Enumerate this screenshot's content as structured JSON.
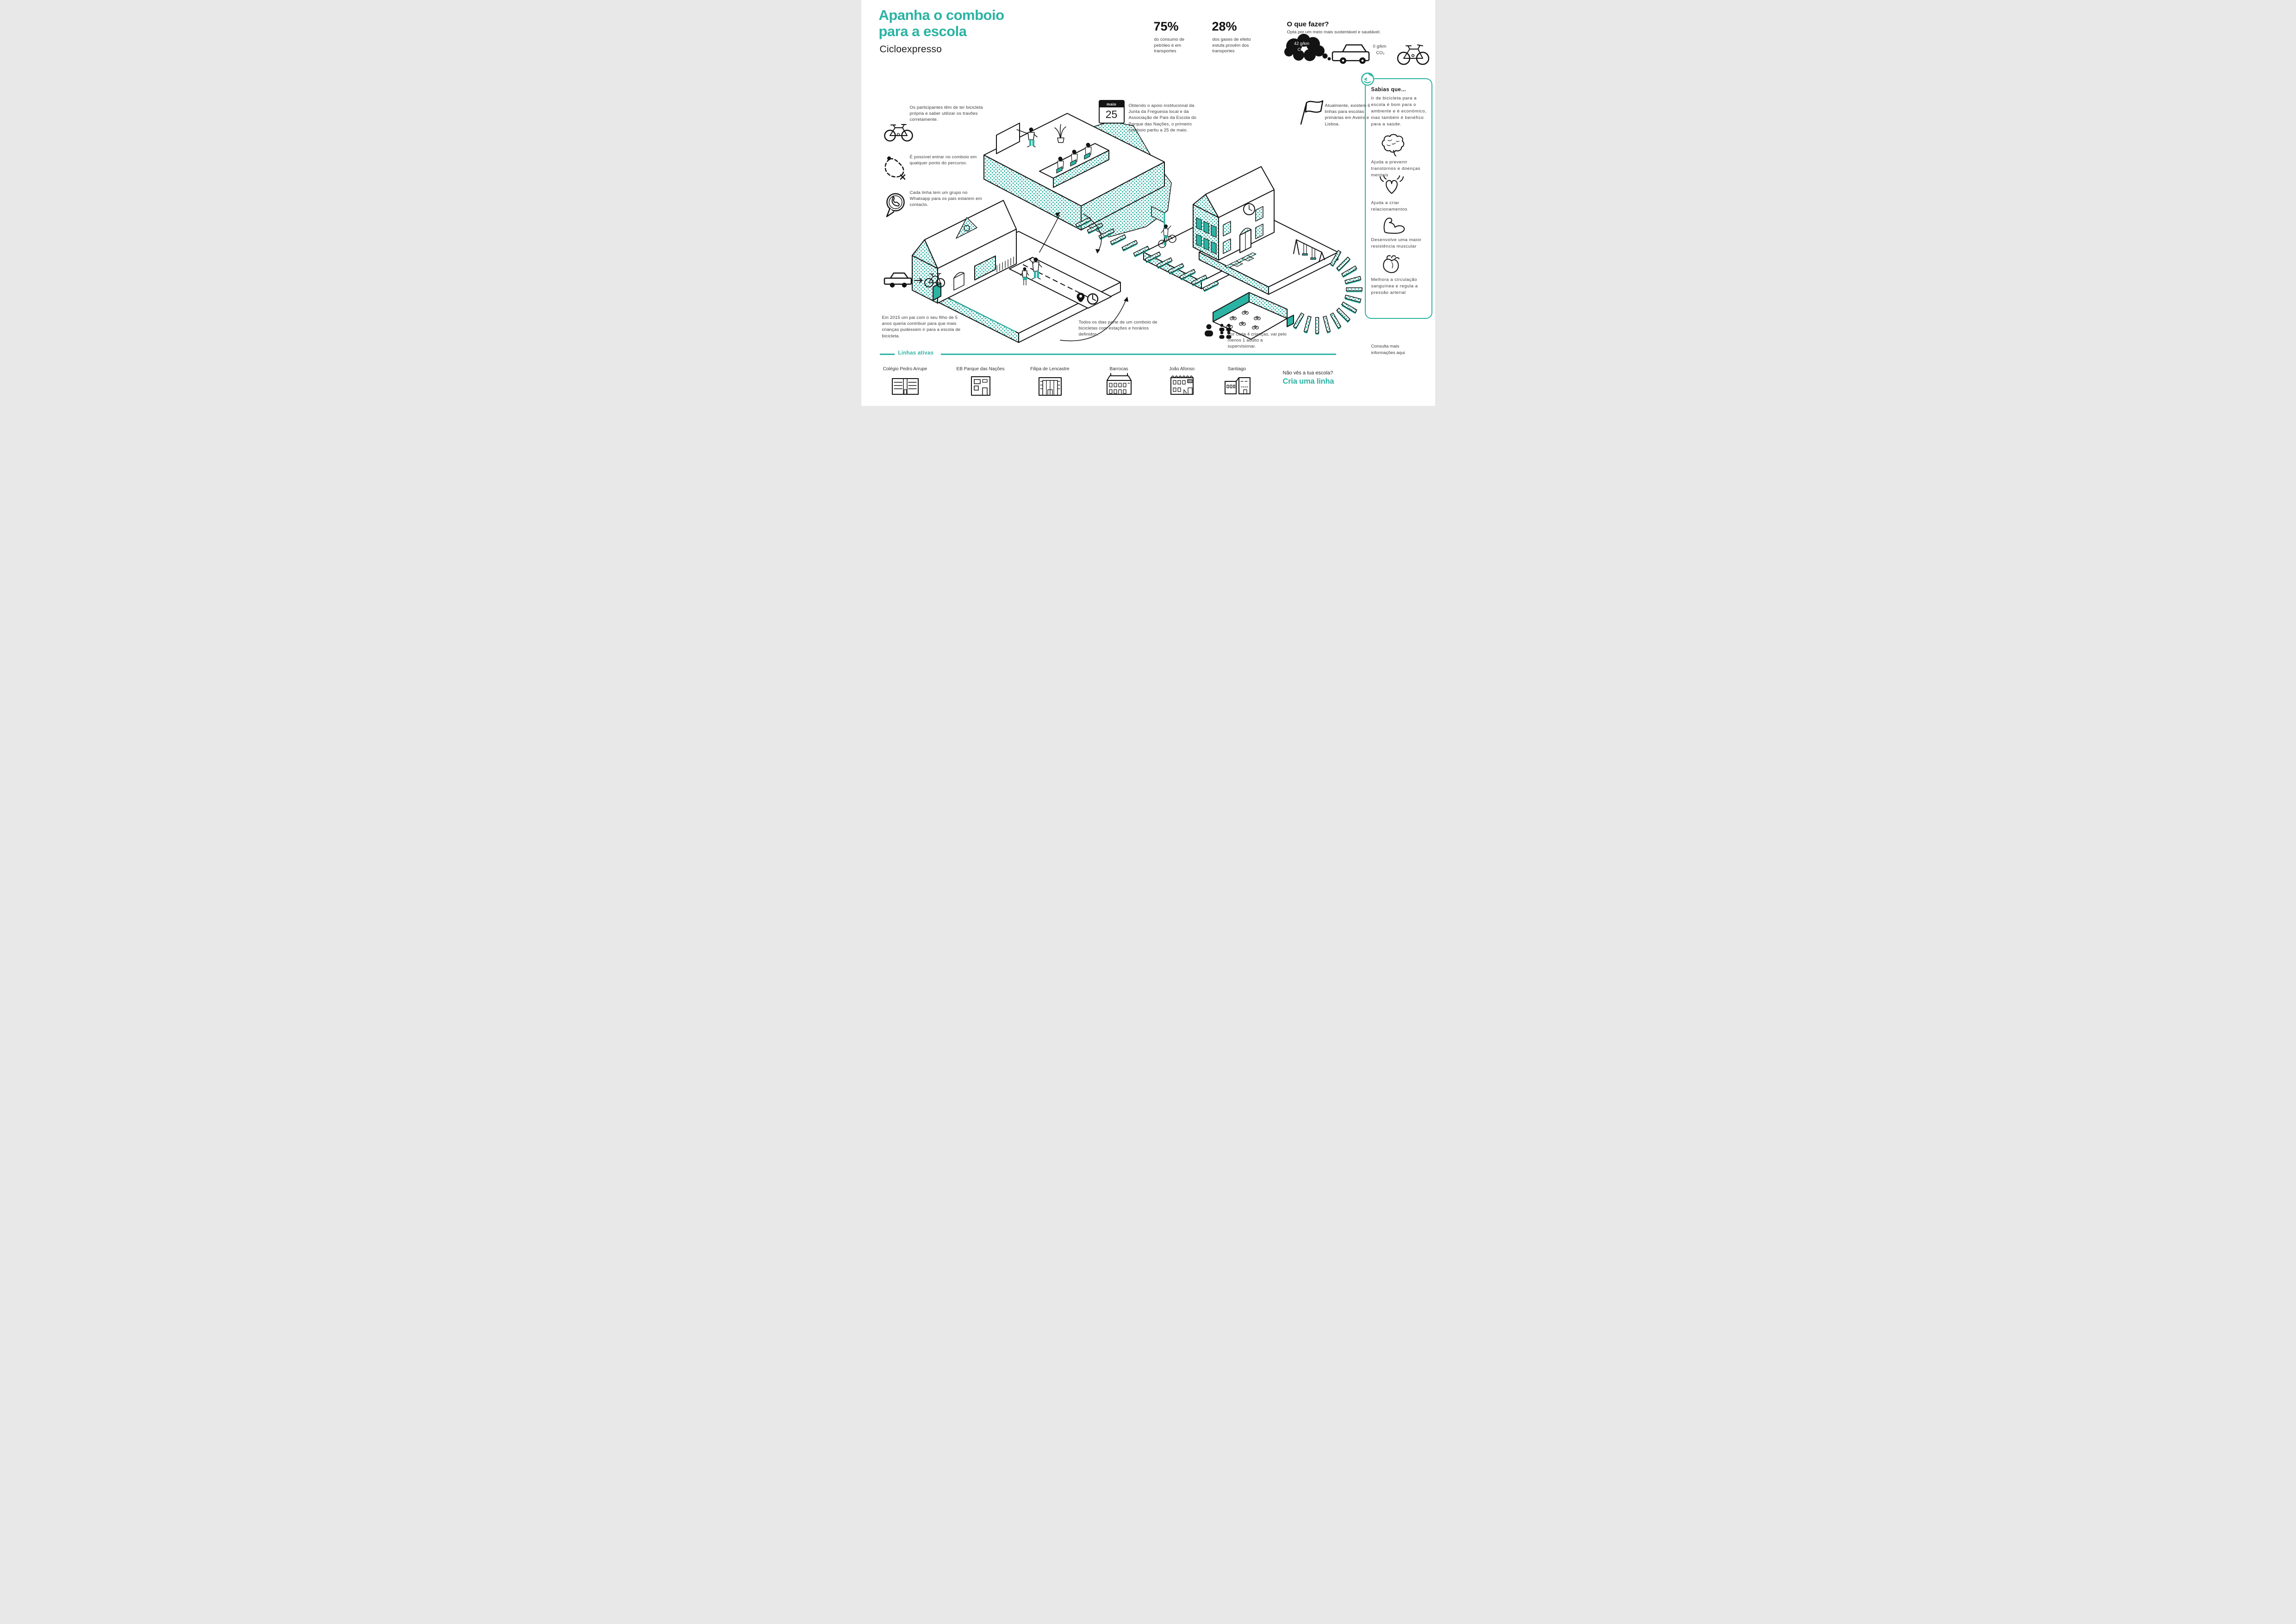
{
  "colors": {
    "accent": "#2bb3a3",
    "ink": "#131313",
    "body_text": "#3c3c3c"
  },
  "header": {
    "title_line1": "Apanha o comboio",
    "title_line2": "para a escola",
    "subtitle": "Cicloexpresso"
  },
  "stats": [
    {
      "value": "75%",
      "caption": "do consumo de petróleo é em transportes"
    },
    {
      "value": "28%",
      "caption": "dos gases de efeito estufa provêm dos transportes"
    }
  ],
  "what_to_do": {
    "title": "O que fazer?",
    "subtitle": "Opta por um meio mais sustentável e saudável.",
    "car_emission_value": "42 g/km",
    "car_emission_unit": "CO₂",
    "bike_emission_value": "0 g/km",
    "bike_emission_unit": "CO₂"
  },
  "guidelines": [
    {
      "icon": "bicycle-icon",
      "text": "Os participantes têm de ter bicicleta própria e saber utilizar os travões corretamente."
    },
    {
      "icon": "route-icon",
      "text": "É possível entrar no comboio em qualquer ponto do percurso."
    },
    {
      "icon": "whatsapp-icon",
      "text": "Cada linha tem um grupo no Whatsapp para os pais estarem em contacto."
    }
  ],
  "calendar_note": {
    "month": "maio",
    "day": "25",
    "text": "Obtendo o apoio institucional da Junta da Freguesia local e da Associação de Pais da Escola do Parque das Nações, o primeiro comboio partiu a 25 de maio."
  },
  "flag_note": {
    "text": "Atualmente, existem 6 linhas para escolas primárias em Aveiro e Lisboa."
  },
  "story_note": {
    "text": "Em 2015 um pai com o seu filho de 5 anos queria contribuir para que mais crianças pudessem ir para a escola de bicicleta."
  },
  "schedule_note": {
    "text": "Todos os dias parte de um comboio de bicicletas com estações e horários definidos."
  },
  "supervision_note": {
    "text": "Por cada 4 crianças, vai pelo menos 1 adulto a supervisionar."
  },
  "sidebar": {
    "title": "Sabias que...",
    "intro": "Ir de bicicleta para a escola é bom para o ambiente e é económico, mas também é benéfico para a saúde.",
    "benefits": [
      {
        "icon": "brain-icon",
        "text": "Ajuda a prevenir transtornos e doenças mentais"
      },
      {
        "icon": "radiating-heart-icon",
        "text": "Ajuda a criar relacionamentos"
      },
      {
        "icon": "muscle-arm-icon",
        "text": "Desenvolve uma maior resistência muscular"
      },
      {
        "icon": "anatomical-heart-icon",
        "text": "Melhora a circulação sanguínea e regula a pressão arterial"
      }
    ]
  },
  "footer": {
    "section_title": "Linhas ativas",
    "schools": [
      "Colégio Pedro Arrupe",
      "EB Parque das Nações",
      "Filipa de Lencastre",
      "Barrocas",
      "João Afonso",
      "Santiago"
    ],
    "more_info_line1": "Consulta mais",
    "more_info_line2": "informações aqui",
    "cta_question": "Não vês a tua escola?",
    "cta_action": "Cria uma linha"
  }
}
